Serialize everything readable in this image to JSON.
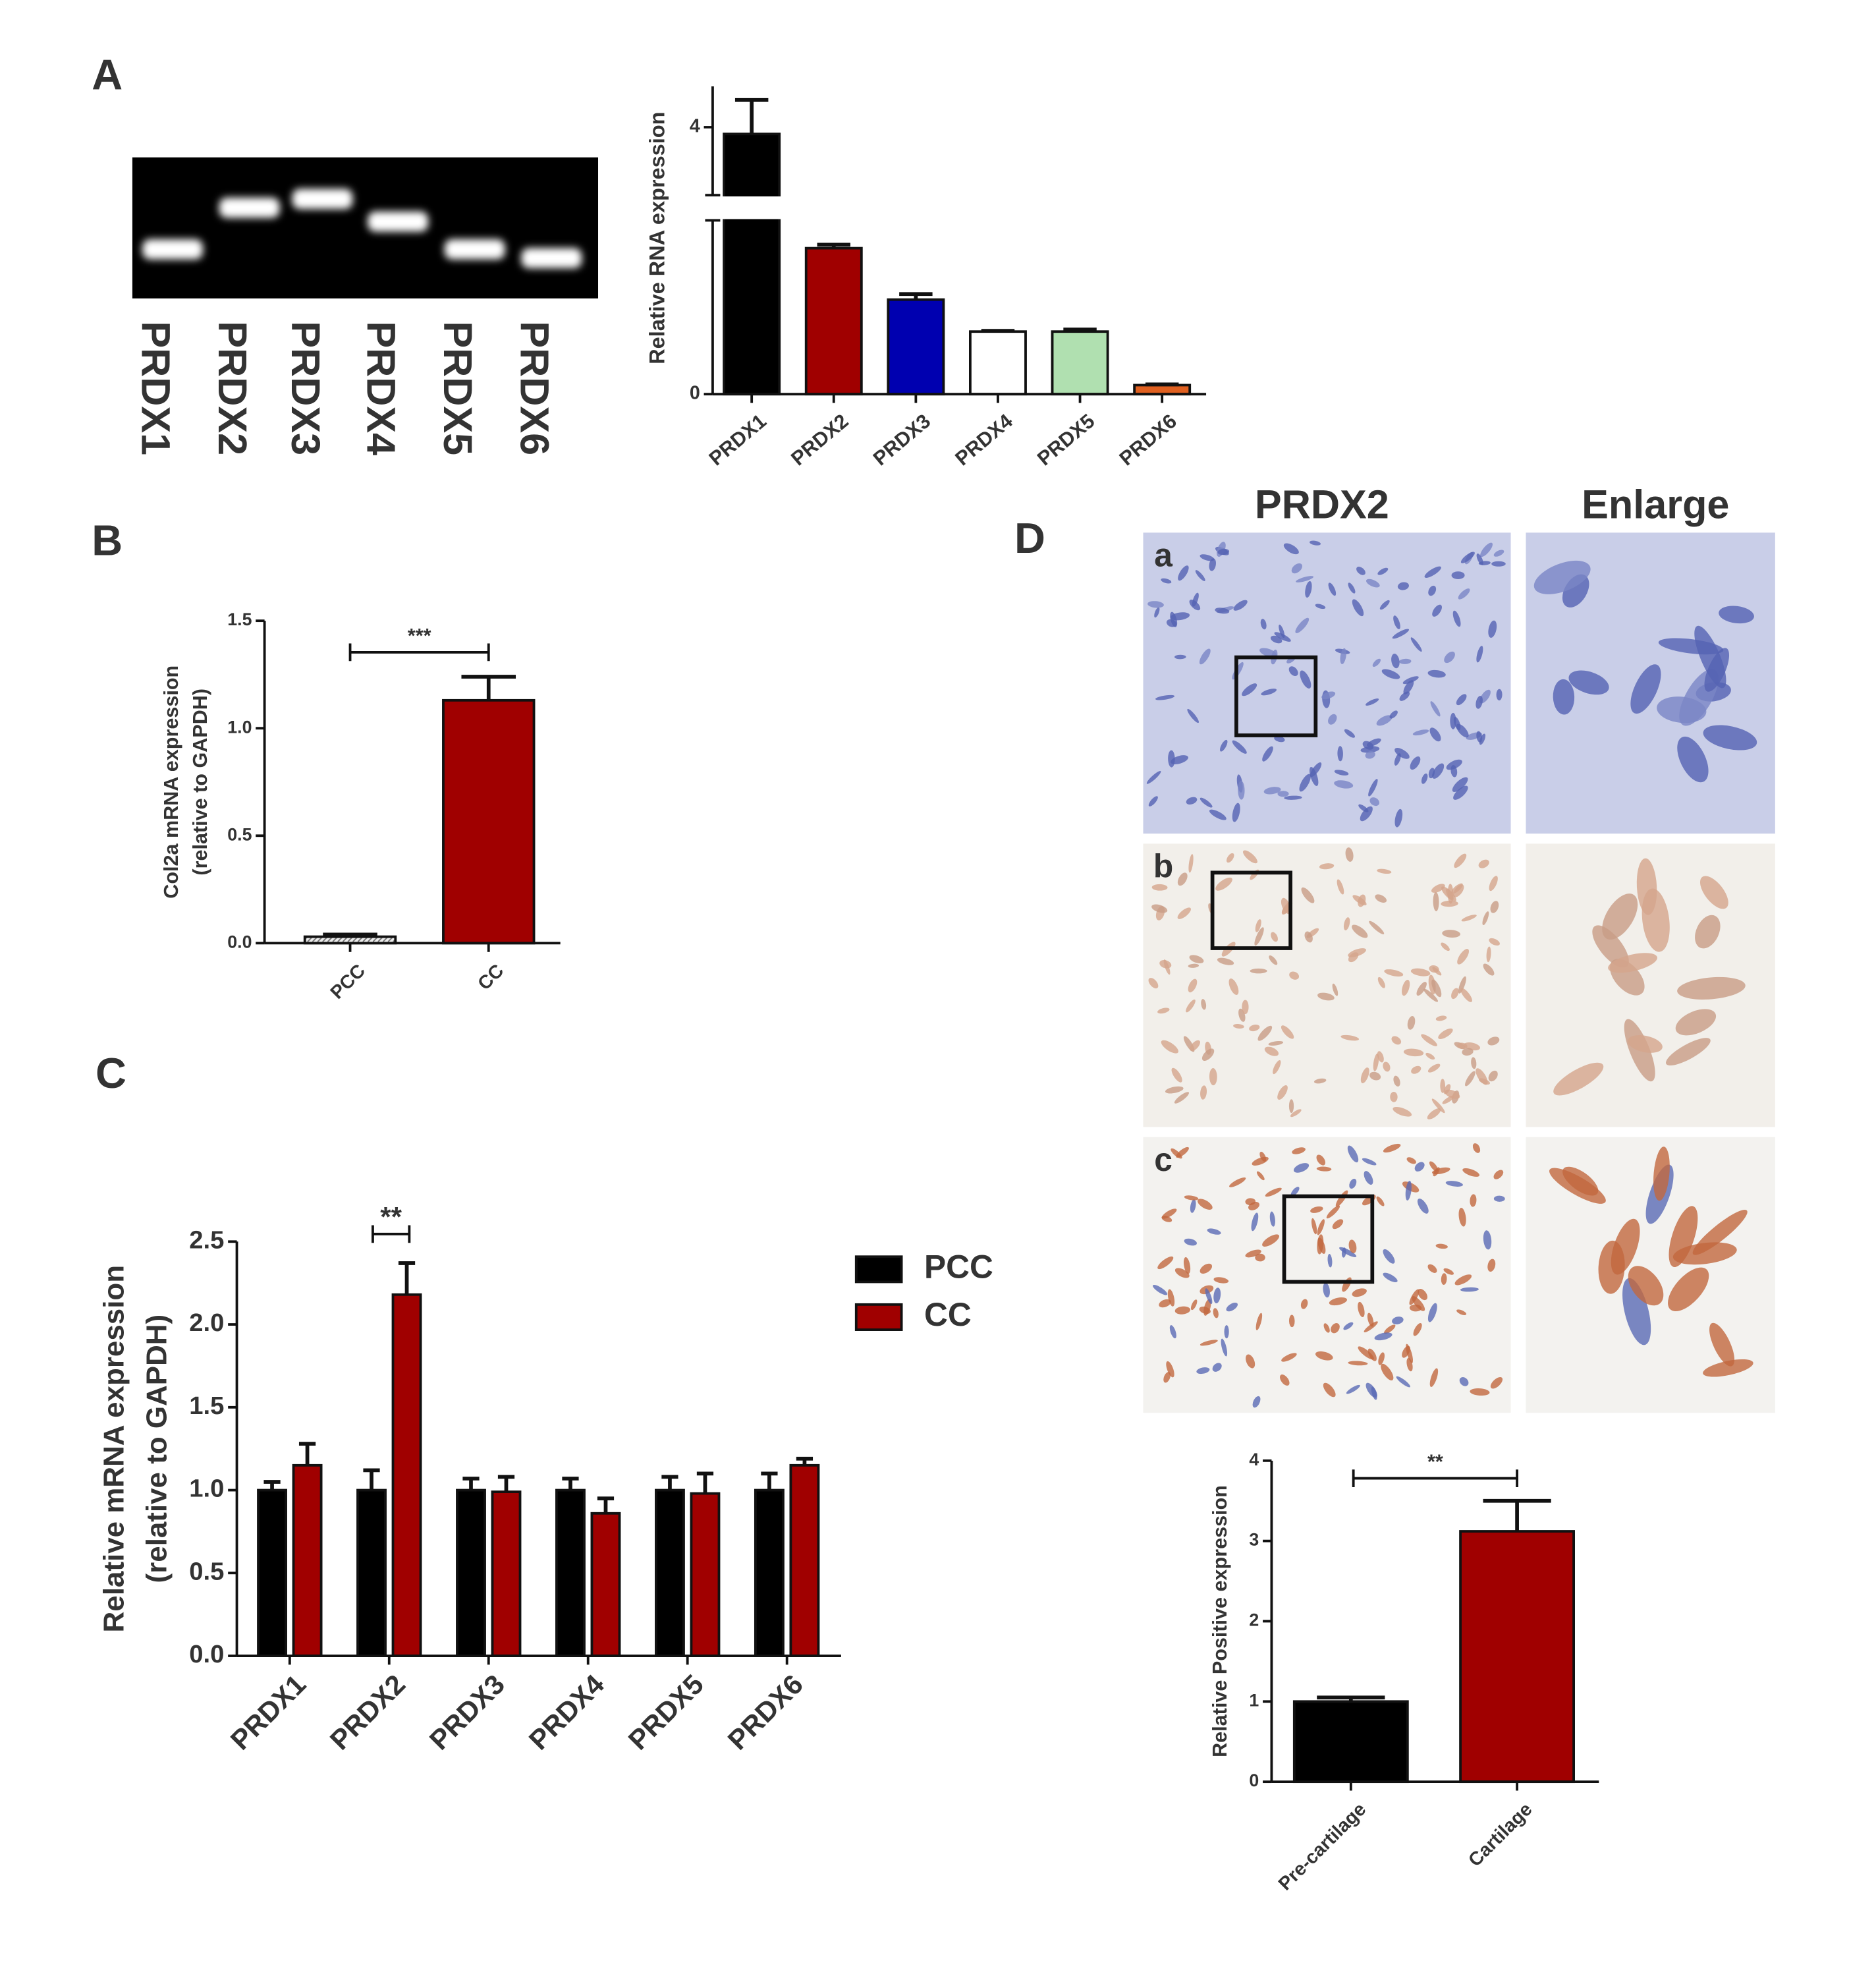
{
  "panel_labels": [
    "A",
    "B",
    "C",
    "D"
  ],
  "gel": {
    "lanes": [
      "PRDX1",
      "PRDX2",
      "PRDX3",
      "PRDX4",
      "PRDX5",
      "PRDX6"
    ]
  },
  "micrographs": {
    "column_titles": [
      "PRDX2",
      "Enlarge"
    ],
    "row_labels": [
      "a",
      "b",
      "c"
    ]
  },
  "chart_data": [
    {
      "type": "bar",
      "ylabel": "Relative RNA expression",
      "categories": [
        "PRDX1",
        "PRDX2",
        "PRDX3",
        "PRDX4",
        "PRDX5",
        "PRDX6"
      ],
      "values": [
        3.9,
        2.1,
        1.36,
        0.9,
        0.9,
        0.13
      ],
      "errors": [
        0.5,
        0.05,
        0.08,
        0.01,
        0.03,
        0.01
      ],
      "colors": [
        "#000000",
        "#a00000",
        "#0000b0",
        "#ffffff",
        "#b0e0b0",
        "#e06020"
      ],
      "ylim": [
        0,
        4.6
      ],
      "axis_break": [
        2.5,
        3.0
      ],
      "yticks": [
        0,
        4
      ]
    },
    {
      "type": "bar",
      "ylabel": [
        "Col2a mRNA expression",
        "(relative to GAPDH)"
      ],
      "categories": [
        "PCC",
        "CC"
      ],
      "values": [
        0.03,
        1.13
      ],
      "errors": [
        0.01,
        0.11
      ],
      "colors": [
        "#c8c8c8",
        "#a00000"
      ],
      "significance": "***",
      "ylim": [
        0,
        1.5
      ],
      "yticks": [
        {
          "value": 0,
          "label": "0.0"
        },
        0.5,
        {
          "value": 1,
          "label": "1.0"
        },
        1.5
      ]
    },
    {
      "type": "bar",
      "ylabel": [
        "Relative mRNA expression",
        "(relative to GAPDH)"
      ],
      "categories": [
        "PRDX1",
        "PRDX2",
        "PRDX3",
        "PRDX4",
        "PRDX5",
        "PRDX6"
      ],
      "series": [
        {
          "name": "PCC",
          "color": "#000000",
          "values": [
            1.0,
            1.0,
            1.0,
            1.0,
            1.0,
            1.0
          ],
          "errors": [
            0.05,
            0.12,
            0.07,
            0.07,
            0.08,
            0.1
          ]
        },
        {
          "name": "CC",
          "color": "#a00000",
          "values": [
            1.15,
            2.18,
            0.99,
            0.86,
            0.98,
            1.15
          ],
          "errors": [
            0.13,
            0.19,
            0.09,
            0.09,
            0.12,
            0.04
          ]
        }
      ],
      "significance": "**",
      "legend": "right",
      "ylim": [
        0,
        2.5
      ],
      "yticks": [
        {
          "value": 0,
          "label": "0.0"
        },
        0.5,
        {
          "value": 1,
          "label": "1.0"
        },
        1.5,
        {
          "value": 2,
          "label": "2.0"
        },
        2.5
      ]
    },
    {
      "type": "bar",
      "ylabel": "Relative Positive expression",
      "categories": [
        "Pre-cartilage",
        "Cartilage"
      ],
      "values": [
        1.0,
        3.12
      ],
      "errors": [
        0.05,
        0.38
      ],
      "colors": [
        "#000000",
        "#a00000"
      ],
      "significance": "**",
      "ylim": [
        0,
        4
      ],
      "yticks": [
        0,
        1,
        2,
        3,
        4
      ]
    }
  ]
}
